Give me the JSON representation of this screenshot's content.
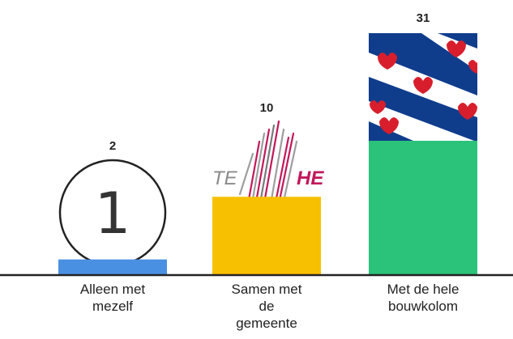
{
  "chart_data": {
    "type": "bar",
    "categories": [
      "Alleen met\nmezelf",
      "Samen met\nde\ngemeente",
      "Met de hele\nbouwkolom"
    ],
    "values": [
      2,
      10,
      31
    ],
    "value_labels": [
      "2",
      "10",
      "31"
    ],
    "colors": [
      "#4a90e2",
      "#f7c000",
      "#2bc27a"
    ],
    "ylim": [
      0,
      31
    ],
    "title": "",
    "xlabel": "",
    "ylabel": "",
    "grid": false,
    "legend": "none"
  },
  "illustrations": {
    "coin_digit": "1",
    "logo_left_text": "TE",
    "logo_right_text": "HE",
    "flag_name": "flag-of-friesland",
    "flag_colors": {
      "stripe": "#0f3d8c",
      "field": "#ffffff",
      "heart": "#d81e2c"
    }
  }
}
